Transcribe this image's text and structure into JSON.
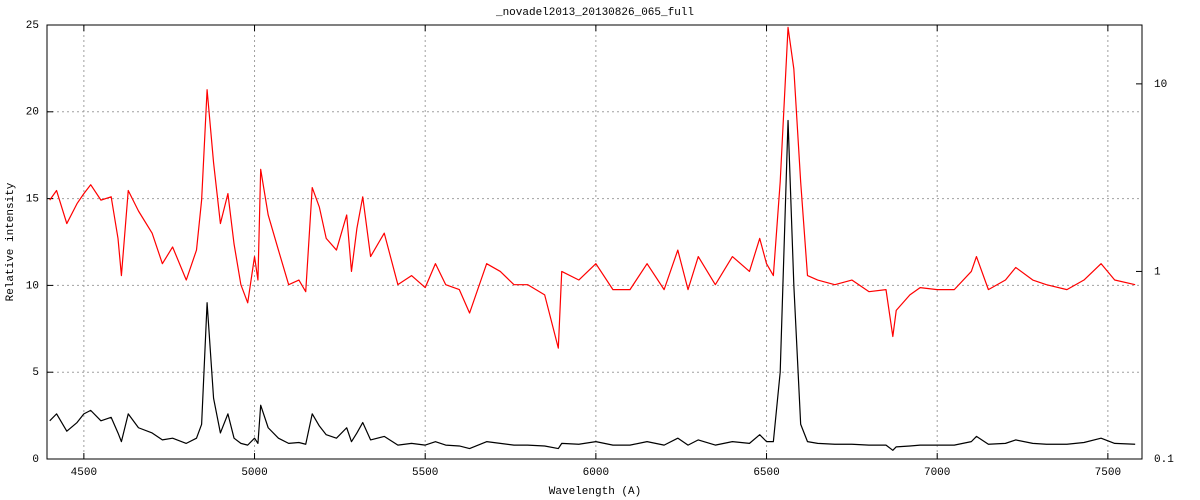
{
  "chart_data": {
    "type": "line",
    "title": "_novadel2013_20130826_065_full",
    "x_label": "Wavelength (A)",
    "y_label": "Relative intensity",
    "xlim": [
      4392,
      7600
    ],
    "xticks": [
      4500,
      5000,
      5500,
      6000,
      6500,
      7000,
      7500
    ],
    "ylim": [
      0,
      25
    ],
    "yticks": [
      0,
      5,
      10,
      15,
      20,
      25
    ],
    "y2lim": [
      0.1,
      20.6
    ],
    "y2ticks": [
      0.1,
      1,
      10
    ],
    "y2log": true,
    "grid": true,
    "x": [
      4400,
      4420,
      4450,
      4480,
      4500,
      4520,
      4550,
      4580,
      4600,
      4610,
      4630,
      4660,
      4700,
      4730,
      4760,
      4800,
      4830,
      4845,
      4861,
      4880,
      4900,
      4922,
      4940,
      4960,
      4980,
      5000,
      5010,
      5018,
      5040,
      5070,
      5100,
      5130,
      5150,
      5169,
      5190,
      5210,
      5240,
      5270,
      5284,
      5300,
      5317,
      5340,
      5380,
      5420,
      5460,
      5500,
      5530,
      5560,
      5600,
      5630,
      5680,
      5720,
      5760,
      5800,
      5850,
      5890,
      5900,
      5950,
      6000,
      6050,
      6100,
      6150,
      6200,
      6240,
      6270,
      6300,
      6350,
      6400,
      6450,
      6480,
      6500,
      6520,
      6540,
      6563,
      6580,
      6600,
      6620,
      6650,
      6700,
      6750,
      6800,
      6850,
      6870,
      6880,
      6920,
      6950,
      7000,
      7050,
      7100,
      7115,
      7150,
      7200,
      7230,
      7280,
      7320,
      7380,
      7430,
      7480,
      7520,
      7580
    ],
    "series": [
      {
        "color": "#000000",
        "values": [
          2.2,
          2.6,
          1.6,
          2.1,
          2.6,
          2.8,
          2.2,
          2.4,
          1.5,
          1.0,
          2.6,
          1.8,
          1.5,
          1.1,
          1.2,
          0.9,
          1.2,
          2.0,
          9.0,
          3.5,
          1.5,
          2.6,
          1.2,
          0.9,
          0.8,
          1.2,
          0.9,
          3.1,
          1.8,
          1.2,
          0.9,
          0.95,
          0.85,
          2.6,
          1.9,
          1.4,
          1.2,
          1.8,
          1.0,
          1.5,
          2.1,
          1.1,
          1.3,
          0.8,
          0.9,
          0.8,
          1.0,
          0.8,
          0.75,
          0.6,
          1.0,
          0.9,
          0.8,
          0.8,
          0.75,
          0.6,
          0.9,
          0.85,
          1.0,
          0.8,
          0.8,
          1.0,
          0.8,
          1.2,
          0.8,
          1.1,
          0.8,
          1.0,
          0.9,
          1.4,
          1.0,
          1.0,
          5,
          19.5,
          10,
          2.0,
          1.0,
          0.9,
          0.85,
          0.85,
          0.8,
          0.8,
          0.5,
          0.7,
          0.75,
          0.8,
          0.8,
          0.8,
          1.0,
          1.3,
          0.85,
          0.9,
          1.1,
          0.9,
          0.85,
          0.85,
          0.95,
          1.2,
          0.9,
          0.85
        ]
      },
      {
        "color": "#ff0000",
        "axis": "y2",
        "values": [
          2.4,
          2.7,
          1.8,
          2.3,
          2.6,
          2.9,
          2.4,
          2.5,
          1.5,
          0.95,
          2.7,
          2.1,
          1.6,
          1.1,
          1.35,
          0.9,
          1.3,
          2.4,
          9.3,
          3.8,
          1.8,
          2.6,
          1.4,
          0.85,
          0.68,
          1.2,
          0.9,
          3.5,
          2.0,
          1.3,
          0.85,
          0.9,
          0.78,
          2.8,
          2.2,
          1.5,
          1.3,
          2.0,
          1.0,
          1.7,
          2.5,
          1.2,
          1.6,
          0.85,
          0.95,
          0.82,
          1.1,
          0.85,
          0.8,
          0.6,
          1.1,
          1.0,
          0.85,
          0.85,
          0.75,
          0.39,
          1.0,
          0.9,
          1.1,
          0.8,
          0.8,
          1.1,
          0.8,
          1.3,
          0.8,
          1.2,
          0.85,
          1.2,
          1.0,
          1.5,
          1.1,
          0.95,
          3.0,
          20.0,
          12,
          3.0,
          0.95,
          0.9,
          0.85,
          0.9,
          0.78,
          0.8,
          0.45,
          0.62,
          0.75,
          0.82,
          0.8,
          0.8,
          1.0,
          1.2,
          0.8,
          0.9,
          1.05,
          0.9,
          0.85,
          0.8,
          0.9,
          1.1,
          0.9,
          0.85
        ]
      }
    ]
  }
}
